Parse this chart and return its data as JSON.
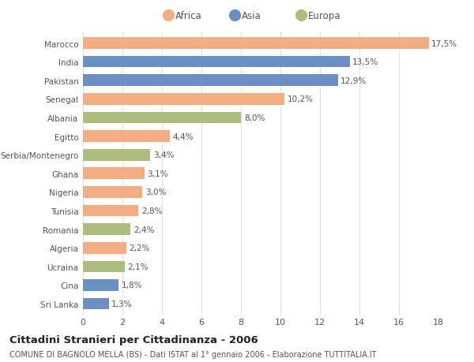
{
  "countries": [
    "Marocco",
    "India",
    "Pakistan",
    "Senegal",
    "Albania",
    "Egitto",
    "Serbia/Montenegro",
    "Ghana",
    "Nigeria",
    "Tunisia",
    "Romania",
    "Algeria",
    "Ucraina",
    "Cina",
    "Sri Lanka"
  ],
  "values": [
    17.5,
    13.5,
    12.9,
    10.2,
    8.0,
    4.4,
    3.4,
    3.1,
    3.0,
    2.8,
    2.4,
    2.2,
    2.1,
    1.8,
    1.3
  ],
  "labels": [
    "17,5%",
    "13,5%",
    "12,9%",
    "10,2%",
    "8,0%",
    "4,4%",
    "3,4%",
    "3,1%",
    "3,0%",
    "2,8%",
    "2,4%",
    "2,2%",
    "2,1%",
    "1,8%",
    "1,3%"
  ],
  "continent": [
    "Africa",
    "Asia",
    "Asia",
    "Africa",
    "Europa",
    "Africa",
    "Europa",
    "Africa",
    "Africa",
    "Africa",
    "Europa",
    "Africa",
    "Europa",
    "Asia",
    "Asia"
  ],
  "colors": {
    "Africa": "#F2AD82",
    "Asia": "#6B8FC2",
    "Europa": "#ABBE7E"
  },
  "title": "Cittadini Stranieri per Cittadinanza - 2006",
  "subtitle": "COMUNE DI BAGNOLO MELLA (BS) - Dati ISTAT al 1° gennaio 2006 - Elaborazione TUTTITALIA.IT",
  "xlim": [
    0,
    18
  ],
  "xticks": [
    0,
    2,
    4,
    6,
    8,
    10,
    12,
    14,
    16,
    18
  ],
  "background_color": "#ffffff",
  "grid_color": "#e0e0e0",
  "bar_height": 0.62,
  "label_fontsize": 7.5,
  "ytick_fontsize": 7.5,
  "xtick_fontsize": 8,
  "title_fontsize": 9.5,
  "subtitle_fontsize": 7.0,
  "legend_fontsize": 8.5
}
